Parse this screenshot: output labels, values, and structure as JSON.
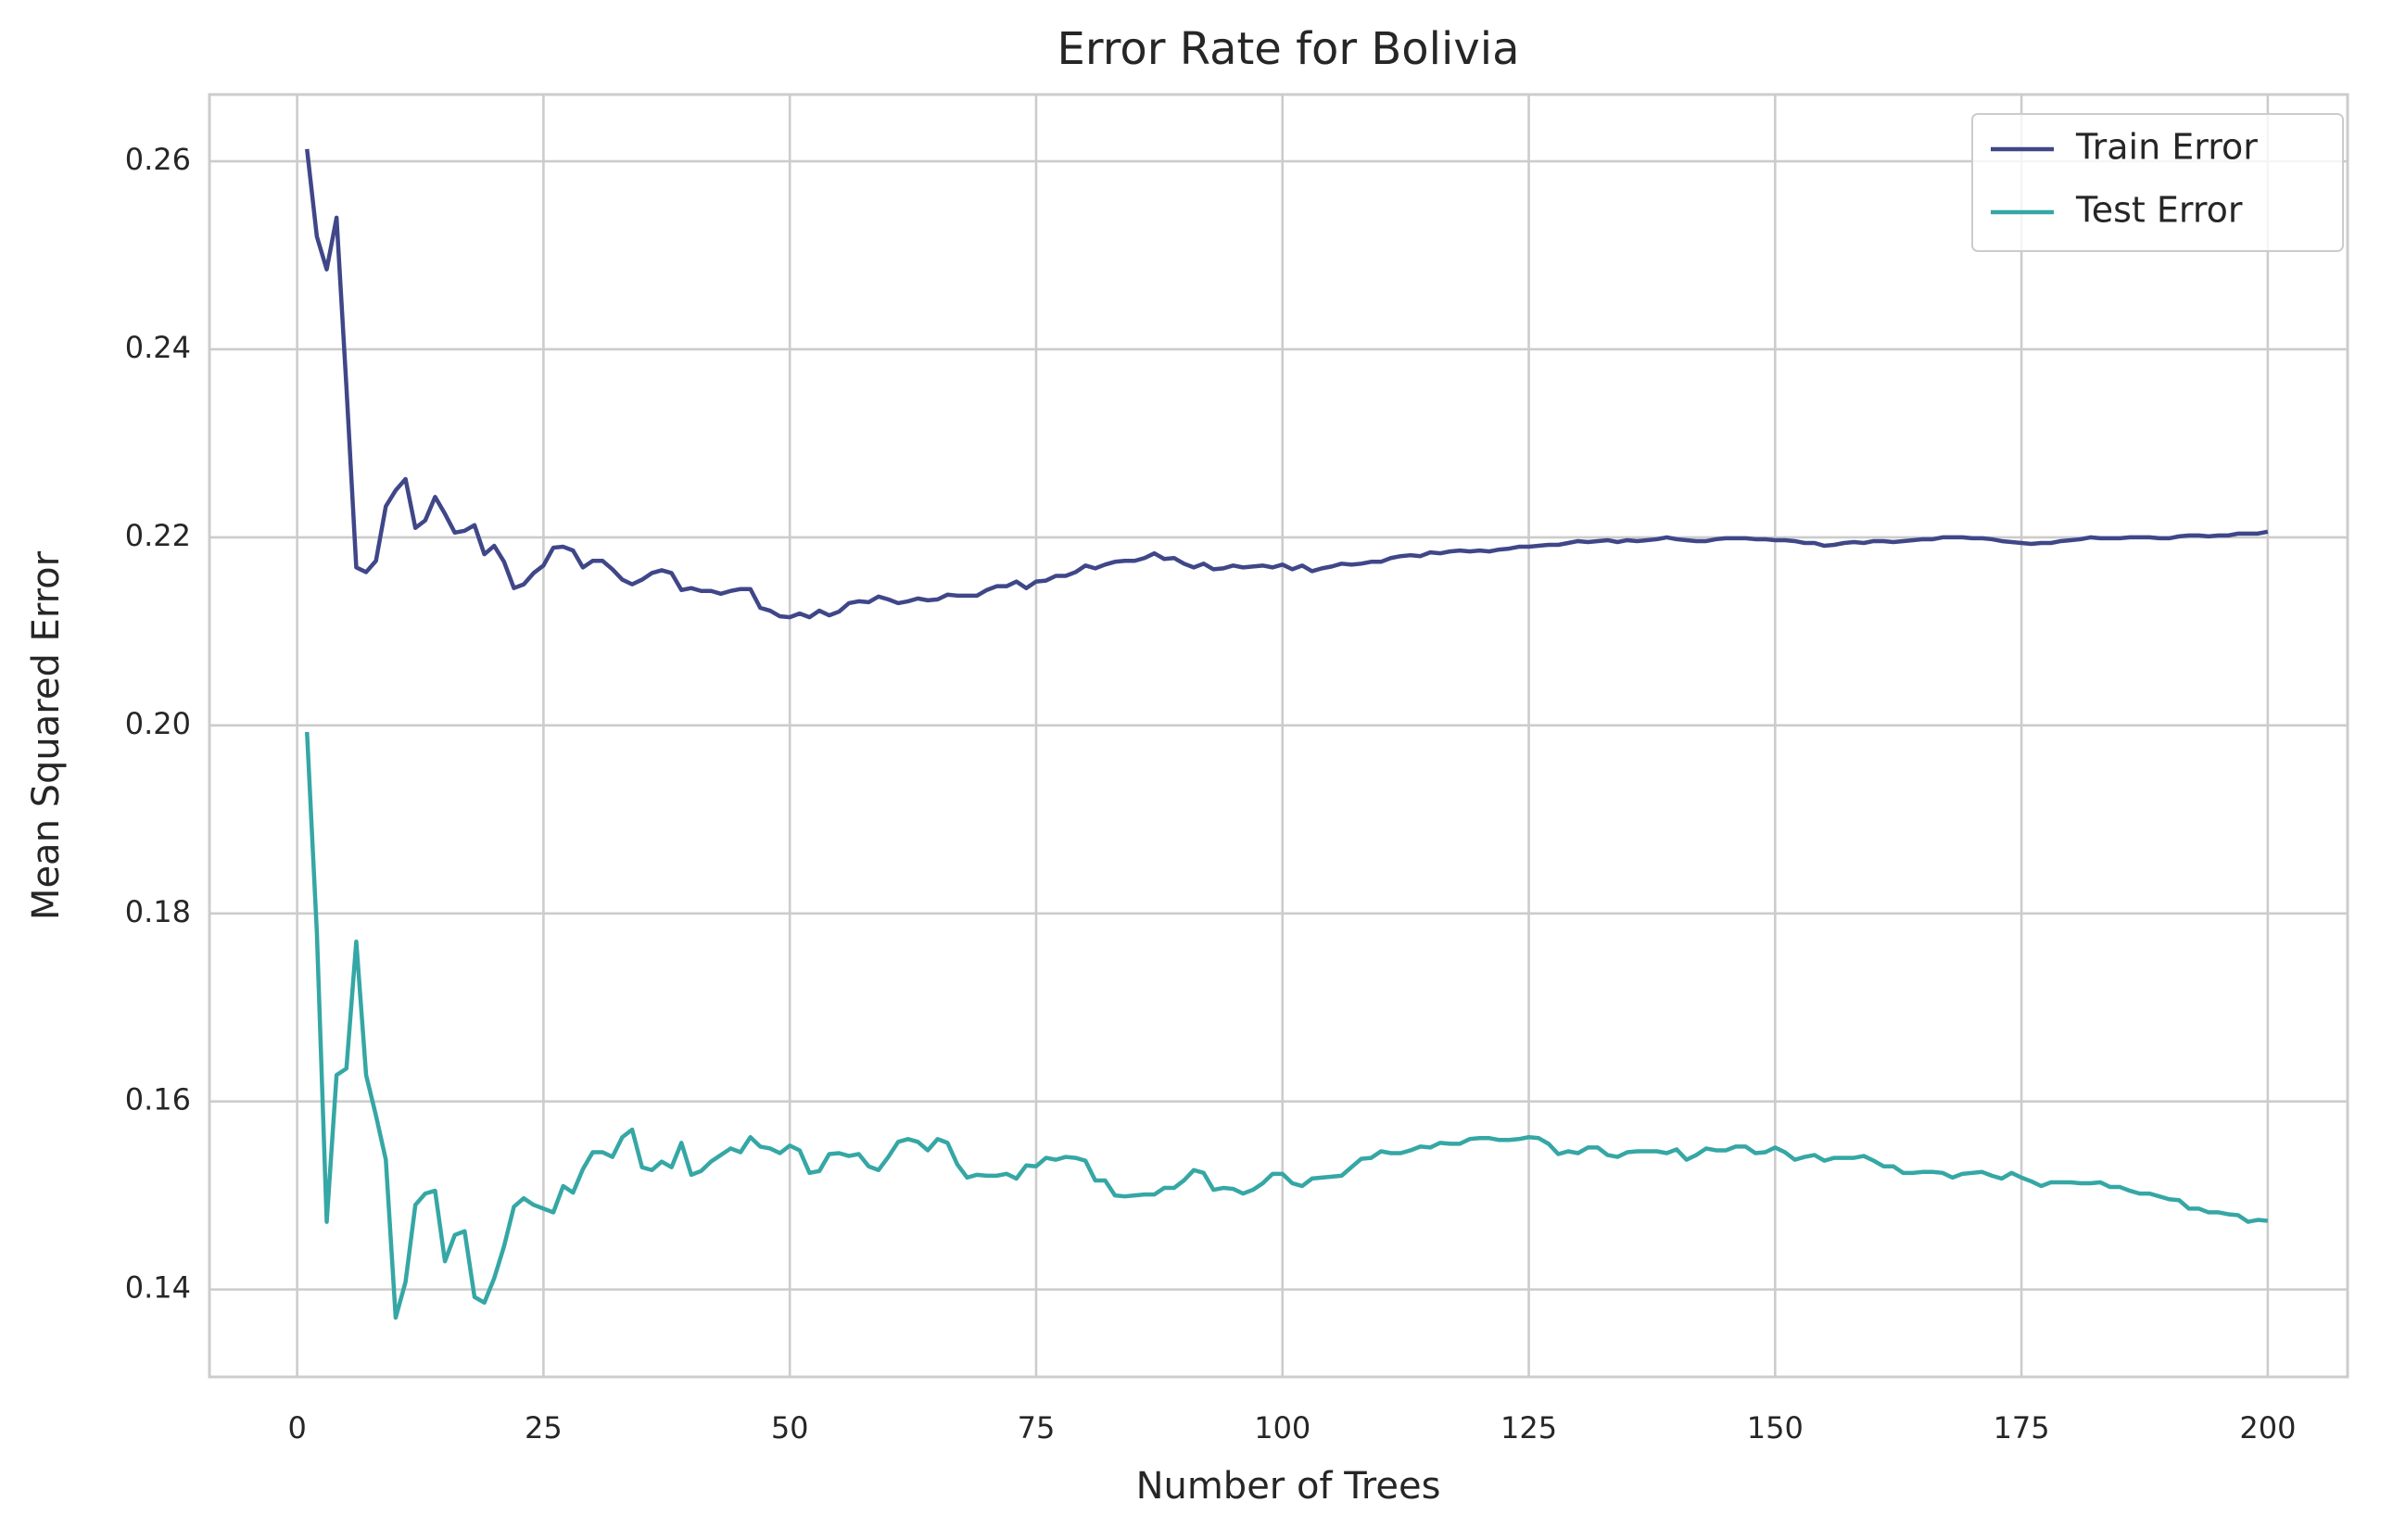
{
  "chart_data": {
    "type": "line",
    "title": "Error Rate for Bolivia",
    "x_label": "Number of Trees",
    "y_label": "Mean Squared Error",
    "x": [
      1,
      2,
      3,
      4,
      5,
      6,
      7,
      8,
      9,
      10,
      11,
      12,
      13,
      14,
      15,
      16,
      17,
      18,
      19,
      20,
      21,
      22,
      23,
      24,
      25,
      26,
      27,
      28,
      29,
      30,
      31,
      32,
      33,
      34,
      35,
      36,
      37,
      38,
      39,
      40,
      41,
      42,
      43,
      44,
      45,
      46,
      47,
      48,
      49,
      50,
      51,
      52,
      53,
      54,
      55,
      56,
      57,
      58,
      59,
      60,
      61,
      62,
      63,
      64,
      65,
      66,
      67,
      68,
      69,
      70,
      71,
      72,
      73,
      74,
      75,
      76,
      77,
      78,
      79,
      80,
      81,
      82,
      83,
      84,
      85,
      86,
      87,
      88,
      89,
      90,
      91,
      92,
      93,
      94,
      95,
      96,
      97,
      98,
      99,
      100,
      101,
      102,
      103,
      104,
      105,
      106,
      107,
      108,
      109,
      110,
      111,
      112,
      113,
      114,
      115,
      116,
      117,
      118,
      119,
      120,
      121,
      122,
      123,
      124,
      125,
      126,
      127,
      128,
      129,
      130,
      131,
      132,
      133,
      134,
      135,
      136,
      137,
      138,
      139,
      140,
      141,
      142,
      143,
      144,
      145,
      146,
      147,
      148,
      149,
      150,
      151,
      152,
      153,
      154,
      155,
      156,
      157,
      158,
      159,
      160,
      161,
      162,
      163,
      164,
      165,
      166,
      167,
      168,
      169,
      170,
      171,
      172,
      173,
      174,
      175,
      176,
      177,
      178,
      179,
      180,
      181,
      182,
      183,
      184,
      185,
      186,
      187,
      188,
      189,
      190,
      191,
      192,
      193,
      194,
      195,
      196,
      197,
      198,
      199,
      200
    ],
    "series": [
      {
        "name": "Train Error",
        "color": "#3f4788",
        "values": [
          0.2613,
          0.252,
          0.2485,
          0.254,
          0.236,
          0.2168,
          0.2163,
          0.2175,
          0.2233,
          0.225,
          0.2262,
          0.221,
          0.2218,
          0.2243,
          0.2225,
          0.2205,
          0.2207,
          0.2213,
          0.2182,
          0.2191,
          0.2174,
          0.2146,
          0.215,
          0.2162,
          0.217,
          0.2189,
          0.219,
          0.2186,
          0.2168,
          0.2175,
          0.2175,
          0.2166,
          0.2155,
          0.215,
          0.2155,
          0.2162,
          0.2165,
          0.2162,
          0.2144,
          0.2146,
          0.2143,
          0.2143,
          0.214,
          0.2143,
          0.2145,
          0.2145,
          0.2125,
          0.2122,
          0.2116,
          0.2115,
          0.2119,
          0.2115,
          0.2122,
          0.2117,
          0.2121,
          0.213,
          0.2132,
          0.2131,
          0.2137,
          0.2134,
          0.213,
          0.2132,
          0.2135,
          0.2133,
          0.2134,
          0.2139,
          0.2138,
          0.2138,
          0.2138,
          0.2144,
          0.2148,
          0.2148,
          0.2153,
          0.2146,
          0.2153,
          0.2154,
          0.2159,
          0.2159,
          0.2163,
          0.217,
          0.2167,
          0.2171,
          0.2174,
          0.2175,
          0.2175,
          0.2178,
          0.2183,
          0.2177,
          0.2178,
          0.2172,
          0.2168,
          0.2172,
          0.2166,
          0.2167,
          0.217,
          0.2168,
          0.2169,
          0.217,
          0.2168,
          0.2171,
          0.2166,
          0.217,
          0.2164,
          0.2167,
          0.2169,
          0.2172,
          0.2171,
          0.2172,
          0.2174,
          0.2174,
          0.2178,
          0.218,
          0.2181,
          0.218,
          0.2184,
          0.2183,
          0.2185,
          0.2186,
          0.2185,
          0.2186,
          0.2185,
          0.2187,
          0.2188,
          0.219,
          0.219,
          0.2191,
          0.2192,
          0.2192,
          0.2194,
          0.2196,
          0.2195,
          0.2196,
          0.2197,
          0.2195,
          0.2197,
          0.2196,
          0.2197,
          0.2198,
          0.22,
          0.2198,
          0.2197,
          0.2196,
          0.2196,
          0.2198,
          0.2199,
          0.2199,
          0.2199,
          0.2198,
          0.2198,
          0.2197,
          0.2197,
          0.2196,
          0.2194,
          0.2194,
          0.2191,
          0.2192,
          0.2194,
          0.2195,
          0.2194,
          0.2196,
          0.2196,
          0.2195,
          0.2196,
          0.2197,
          0.2198,
          0.2198,
          0.22,
          0.22,
          0.22,
          0.2199,
          0.2199,
          0.2198,
          0.2196,
          0.2195,
          0.2194,
          0.2193,
          0.2194,
          0.2194,
          0.2196,
          0.2197,
          0.2198,
          0.22,
          0.2199,
          0.2199,
          0.2199,
          0.22,
          0.22,
          0.22,
          0.2199,
          0.2199,
          0.2201,
          0.2202,
          0.2202,
          0.2201,
          0.2202,
          0.2202,
          0.2204,
          0.2204,
          0.2204,
          0.2206
        ]
      },
      {
        "name": "Test Error",
        "color": "#35a7a5",
        "values": [
          0.1993,
          0.178,
          0.1472,
          0.1628,
          0.1635,
          0.177,
          0.1628,
          0.1585,
          0.1538,
          0.137,
          0.1408,
          0.149,
          0.1502,
          0.1505,
          0.143,
          0.1458,
          0.1462,
          0.1392,
          0.1386,
          0.1412,
          0.1446,
          0.1488,
          0.1497,
          0.149,
          0.1486,
          0.1482,
          0.151,
          0.1503,
          0.1528,
          0.1546,
          0.1546,
          0.1541,
          0.1562,
          0.157,
          0.153,
          0.1527,
          0.1536,
          0.153,
          0.1556,
          0.1522,
          0.1526,
          0.1536,
          0.1543,
          0.155,
          0.1546,
          0.1562,
          0.1552,
          0.155,
          0.1545,
          0.1553,
          0.1548,
          0.1524,
          0.1526,
          0.1544,
          0.1545,
          0.1542,
          0.1544,
          0.1531,
          0.1527,
          0.1541,
          0.1557,
          0.156,
          0.1557,
          0.1548,
          0.156,
          0.1556,
          0.1533,
          0.1519,
          0.1522,
          0.1521,
          0.1521,
          0.1523,
          0.1518,
          0.1532,
          0.1531,
          0.154,
          0.1538,
          0.1541,
          0.154,
          0.1537,
          0.1516,
          0.1516,
          0.15,
          0.1499,
          0.15,
          0.1501,
          0.1501,
          0.1508,
          0.1508,
          0.1516,
          0.1527,
          0.1524,
          0.1506,
          0.1508,
          0.1507,
          0.1502,
          0.1506,
          0.1513,
          0.1523,
          0.1523,
          0.1513,
          0.151,
          0.1518,
          0.1519,
          0.152,
          0.1521,
          0.153,
          0.1539,
          0.154,
          0.1547,
          0.1545,
          0.1545,
          0.1548,
          0.1552,
          0.1551,
          0.1556,
          0.1555,
          0.1555,
          0.156,
          0.1561,
          0.1561,
          0.1559,
          0.1559,
          0.156,
          0.1562,
          0.1561,
          0.1555,
          0.1544,
          0.1547,
          0.1545,
          0.1551,
          0.1551,
          0.1543,
          0.1541,
          0.1546,
          0.1547,
          0.1547,
          0.1547,
          0.1545,
          0.1549,
          0.1538,
          0.1543,
          0.155,
          0.1548,
          0.1548,
          0.1552,
          0.1552,
          0.1545,
          0.1546,
          0.1551,
          0.1546,
          0.1538,
          0.1541,
          0.1543,
          0.1537,
          0.154,
          0.154,
          0.154,
          0.1542,
          0.1537,
          0.1531,
          0.1531,
          0.1524,
          0.1524,
          0.1525,
          0.1525,
          0.1524,
          0.1519,
          0.1523,
          0.1524,
          0.1525,
          0.1521,
          0.1518,
          0.1524,
          0.1519,
          0.1515,
          0.151,
          0.1514,
          0.1514,
          0.1514,
          0.1513,
          0.1513,
          0.1514,
          0.1509,
          0.1509,
          0.1505,
          0.1502,
          0.1502,
          0.1499,
          0.1496,
          0.1495,
          0.1486,
          0.1486,
          0.1482,
          0.1482,
          0.148,
          0.1479,
          0.1472,
          0.1474,
          0.1473
        ]
      }
    ],
    "xlim": [
      -8.9,
      208.1
    ],
    "xticks": [
      0,
      25,
      50,
      75,
      100,
      125,
      150,
      175,
      200
    ],
    "ylim": [
      0.1307,
      0.2671
    ],
    "yticks": [
      0.14,
      0.16,
      0.18,
      {
        "value": 0.2,
        "label": "0.20"
      },
      0.22,
      0.24,
      0.26
    ],
    "grid": true,
    "legend": "upper-right"
  }
}
